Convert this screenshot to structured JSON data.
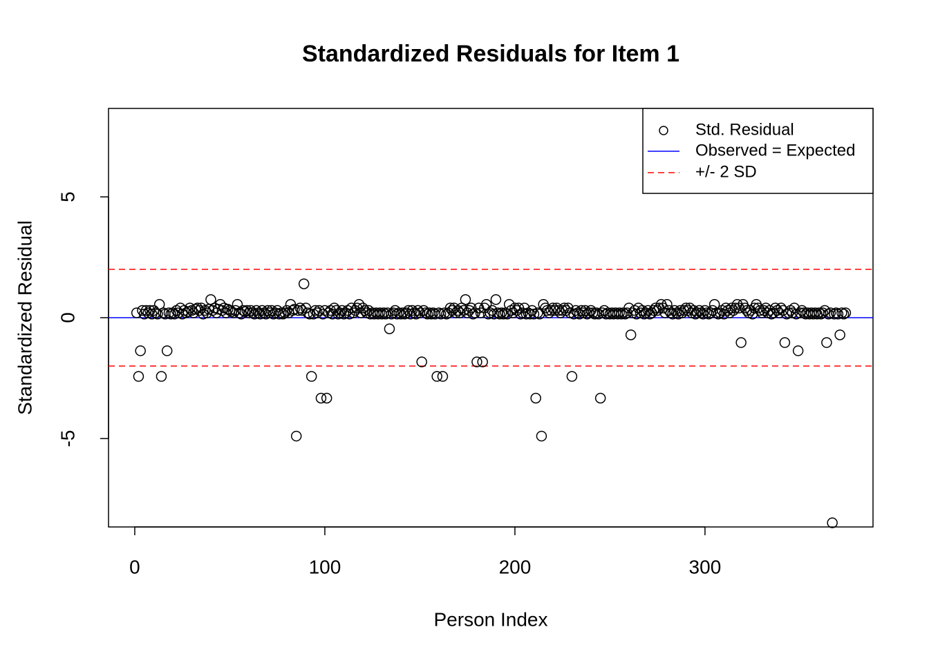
{
  "chart_data": {
    "type": "scatter",
    "title": "Standardized Residuals for Item 1",
    "x_label": "Person Index",
    "y_label": "Standardized Residual",
    "xlim": [
      -13.8,
      388.4
    ],
    "ylim": [
      -8.66,
      8.66
    ],
    "xticks": [
      0,
      100,
      200,
      300
    ],
    "yticks": [
      -5,
      0,
      5
    ],
    "legend": "top-right",
    "series": [
      {
        "name": "Std. Residual",
        "color": "#000000",
        "x": [
          1,
          2,
          3,
          4,
          5,
          6,
          7,
          8,
          9,
          10,
          11,
          12,
          13,
          14,
          15,
          16,
          17,
          18,
          19,
          20,
          21,
          22,
          23,
          24,
          25,
          26,
          27,
          28,
          29,
          30,
          31,
          32,
          33,
          34,
          35,
          36,
          37,
          38,
          39,
          40,
          41,
          42,
          43,
          44,
          45,
          46,
          47,
          48,
          49,
          50,
          51,
          52,
          53,
          54,
          55,
          56,
          57,
          58,
          59,
          60,
          61,
          62,
          63,
          64,
          65,
          66,
          67,
          68,
          69,
          70,
          71,
          72,
          73,
          74,
          75,
          76,
          77,
          78,
          79,
          80,
          81,
          82,
          83,
          84,
          85,
          86,
          87,
          88,
          89,
          90,
          91,
          92,
          93,
          94,
          95,
          96,
          97,
          98,
          99,
          100,
          101,
          102,
          103,
          104,
          105,
          106,
          107,
          108,
          109,
          110,
          111,
          112,
          113,
          114,
          115,
          116,
          117,
          118,
          119,
          120,
          121,
          122,
          123,
          124,
          125,
          126,
          127,
          128,
          129,
          130,
          131,
          132,
          133,
          134,
          135,
          136,
          137,
          138,
          139,
          140,
          141,
          142,
          143,
          144,
          145,
          146,
          147,
          148,
          149,
          150,
          151,
          152,
          153,
          154,
          155,
          156,
          157,
          158,
          159,
          160,
          161,
          162,
          163,
          164,
          165,
          166,
          167,
          168,
          169,
          170,
          171,
          172,
          173,
          174,
          175,
          176,
          177,
          178,
          179,
          180,
          181,
          182,
          183,
          184,
          185,
          186,
          187,
          188,
          189,
          190,
          191,
          192,
          193,
          194,
          195,
          196,
          197,
          198,
          199,
          200,
          201,
          202,
          203,
          204,
          205,
          206,
          207,
          208,
          209,
          210,
          211,
          212,
          213,
          214,
          215,
          216,
          217,
          218,
          219,
          220,
          221,
          222,
          223,
          224,
          225,
          226,
          227,
          228,
          229,
          230,
          231,
          232,
          233,
          234,
          235,
          236,
          237,
          238,
          239,
          240,
          241,
          242,
          243,
          244,
          245,
          246,
          247,
          248,
          249,
          250,
          251,
          252,
          253,
          254,
          255,
          256,
          257,
          258,
          259,
          260,
          261,
          262,
          263,
          264,
          265,
          266,
          267,
          268,
          269,
          270,
          271,
          272,
          273,
          274,
          275,
          276,
          277,
          278,
          279,
          280,
          281,
          282,
          283,
          284,
          285,
          286,
          287,
          288,
          289,
          290,
          291,
          292,
          293,
          294,
          295,
          296,
          297,
          298,
          299,
          300,
          301,
          302,
          303,
          304,
          305,
          306,
          307,
          308,
          309,
          310,
          311,
          312,
          313,
          314,
          315,
          316,
          317,
          318,
          319,
          320,
          321,
          322,
          323,
          324,
          325,
          326,
          327,
          328,
          329,
          330,
          331,
          332,
          333,
          334,
          335,
          336,
          337,
          338,
          339,
          340,
          341,
          342,
          343,
          344,
          345,
          346,
          347,
          348,
          349,
          350,
          351,
          352,
          353,
          354,
          355,
          356,
          357,
          358,
          359,
          360,
          361,
          362,
          363,
          364,
          365,
          366,
          367,
          368,
          369,
          370,
          371,
          372,
          373,
          374
        ],
        "values": [
          0.2,
          -2.43,
          -1.37,
          0.3,
          0.15,
          0.3,
          0.2,
          0.3,
          0.15,
          0.3,
          0.2,
          0.15,
          0.55,
          -2.43,
          0.2,
          0.15,
          -1.37,
          0.2,
          0.15,
          0.2,
          0.15,
          0.3,
          0.2,
          0.4,
          0.15,
          0.3,
          0.2,
          0.25,
          0.4,
          0.3,
          0.2,
          0.35,
          0.4,
          0.3,
          0.4,
          0.15,
          0.3,
          0.2,
          0.35,
          0.75,
          0.3,
          0.4,
          0.2,
          0.35,
          0.55,
          0.3,
          0.4,
          0.2,
          0.35,
          0.3,
          0.25,
          0.2,
          0.3,
          0.55,
          0.2,
          0.15,
          0.3,
          0.25,
          0.3,
          0.2,
          0.3,
          0.2,
          0.15,
          0.3,
          0.2,
          0.15,
          0.3,
          0.2,
          0.15,
          0.3,
          0.2,
          0.3,
          0.15,
          0.2,
          0.3,
          0.15,
          0.2,
          0.15,
          0.2,
          0.3,
          0.2,
          0.55,
          0.3,
          0.35,
          -4.9,
          0.3,
          0.4,
          0.3,
          1.4,
          0.4,
          0.2,
          0.15,
          -2.43,
          0.15,
          0.3,
          0.2,
          0.3,
          -3.33,
          0.15,
          0.3,
          -3.33,
          0.2,
          0.3,
          0.15,
          0.4,
          0.3,
          0.15,
          0.2,
          0.3,
          0.15,
          0.2,
          0.3,
          0.15,
          0.4,
          0.2,
          0.3,
          0.4,
          0.55,
          0.2,
          0.4,
          0.3,
          0.2,
          0.3,
          0.15,
          0.2,
          0.15,
          0.2,
          0.15,
          0.2,
          0.15,
          0.2,
          0.15,
          0.2,
          -0.46,
          0.15,
          0.2,
          0.3,
          0.15,
          0.2,
          0.15,
          0.2,
          0.15,
          0.2,
          0.3,
          0.15,
          0.3,
          0.2,
          0.15,
          0.3,
          0.2,
          -1.83,
          0.3,
          0.2,
          0.15,
          0.2,
          0.15,
          0.2,
          0.15,
          -2.43,
          0.2,
          0.15,
          -2.43,
          0.2,
          0.15,
          0.2,
          0.4,
          0.3,
          0.4,
          0.2,
          0.3,
          0.2,
          0.4,
          0.3,
          0.75,
          0.2,
          0.3,
          0.4,
          0.15,
          0.2,
          -1.83,
          0.4,
          0.2,
          -1.83,
          0.4,
          0.55,
          0.15,
          0.2,
          0.3,
          0.15,
          0.75,
          0.2,
          0.15,
          0.2,
          0.15,
          0.2,
          0.15,
          0.55,
          0.3,
          0.2,
          0.4,
          0.3,
          0.4,
          0.15,
          0.2,
          0.4,
          0.15,
          0.2,
          0.15,
          0.3,
          0.15,
          -3.33,
          0.2,
          0.15,
          -4.9,
          0.55,
          0.4,
          0.3,
          0.2,
          0.3,
          0.4,
          0.3,
          0.4,
          0.3,
          0.2,
          0.3,
          0.4,
          0.3,
          0.4,
          0.2,
          -2.43,
          0.15,
          0.3,
          0.2,
          0.15,
          0.3,
          0.2,
          0.3,
          0.15,
          0.2,
          0.3,
          0.2,
          0.15,
          0.2,
          0.15,
          -3.33,
          0.2,
          0.3,
          0.15,
          0.2,
          0.15,
          0.2,
          0.15,
          0.2,
          0.15,
          0.2,
          0.15,
          0.2,
          0.15,
          0.2,
          0.4,
          -0.71,
          0.2,
          0.3,
          0.15,
          0.4,
          0.2,
          0.3,
          0.15,
          0.2,
          0.3,
          0.15,
          0.2,
          0.3,
          0.4,
          0.3,
          0.4,
          0.55,
          0.4,
          0.2,
          0.55,
          0.3,
          0.2,
          0.15,
          0.3,
          0.2,
          0.15,
          0.3,
          0.2,
          0.3,
          0.4,
          0.3,
          0.4,
          0.2,
          0.3,
          0.15,
          0.2,
          0.3,
          0.2,
          0.15,
          0.3,
          0.2,
          0.15,
          0.2,
          0.3,
          0.55,
          0.2,
          0.15,
          0.2,
          0.3,
          0.15,
          0.4,
          0.3,
          0.2,
          0.4,
          0.3,
          0.4,
          0.55,
          0.4,
          -1.03,
          0.55,
          0.4,
          0.3,
          0.2,
          0.3,
          0.15,
          0.4,
          0.55,
          0.4,
          0.3,
          0.2,
          0.3,
          0.4,
          0.2,
          0.3,
          0.15,
          0.2,
          0.4,
          0.3,
          0.2,
          0.4,
          0.3,
          -1.03,
          0.15,
          0.2,
          0.3,
          0.2,
          0.4,
          0.15,
          -1.37,
          0.2,
          0.3,
          0.2,
          0.15,
          0.2,
          0.15,
          0.2,
          0.15,
          0.2,
          0.15,
          0.2,
          0.15,
          0.2,
          0.3,
          -1.03,
          0.15,
          0.2,
          -8.49,
          0.15,
          0.2,
          0.15,
          -0.71,
          0.2,
          0.15,
          0.2
        ]
      }
    ],
    "reference_lines": [
      {
        "name": "Observed = Expected",
        "values": [
          0
        ],
        "color": "#0000ff",
        "dashed": false
      },
      {
        "name": "+/- 2 SD",
        "values": [
          2,
          -2
        ],
        "color": "#ff0000",
        "dashed": true
      }
    ]
  }
}
